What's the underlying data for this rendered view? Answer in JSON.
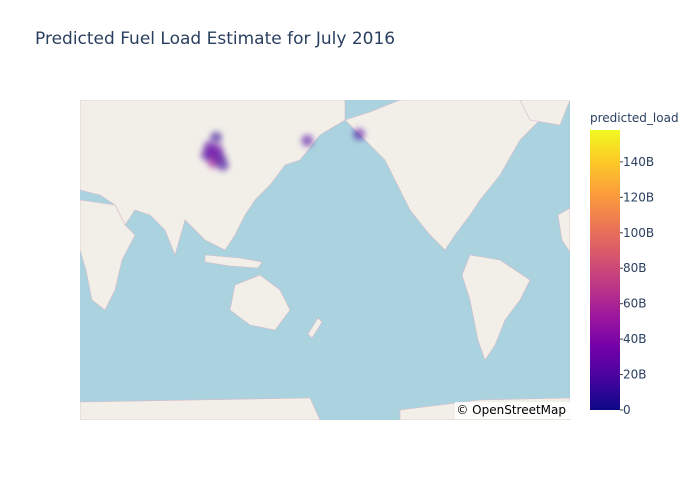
{
  "chart_data": {
    "type": "density_map",
    "title": "Predicted Fuel Load Estimate for July 2016",
    "colorbar_title": "predicted_load",
    "attribution": "© OpenStreetMap",
    "lon": [
      82,
      84,
      80,
      86,
      83,
      78,
      88,
      90,
      85,
      152,
      -170
    ],
    "lat": [
      60,
      58,
      62,
      61,
      56,
      59,
      58,
      55,
      65,
      64,
      66
    ],
    "values": [
      35000000000,
      45000000000,
      25000000000,
      30000000000,
      55000000000,
      20000000000,
      15000000000,
      12000000000,
      10000000000,
      20000000000,
      18000000000
    ],
    "colorscale": [
      "#0d0887",
      "#46039f",
      "#7201a8",
      "#9c179e",
      "#bd3786",
      "#d8576b",
      "#ed7953",
      "#fb9f3a",
      "#fdca26",
      "#f0f921"
    ],
    "colorlim": [
      0,
      158000000000
    ],
    "colorticks": [
      0,
      {
        "value": 20000000000,
        "label": "20B"
      },
      {
        "value": 40000000000,
        "label": "40B"
      },
      {
        "value": 60000000000,
        "label": "60B"
      },
      {
        "value": 80000000000,
        "label": "80B"
      },
      {
        "value": 100000000000,
        "label": "100B"
      },
      {
        "value": 120000000000,
        "label": "120B"
      },
      {
        "value": 140000000000,
        "label": "140B"
      }
    ]
  }
}
